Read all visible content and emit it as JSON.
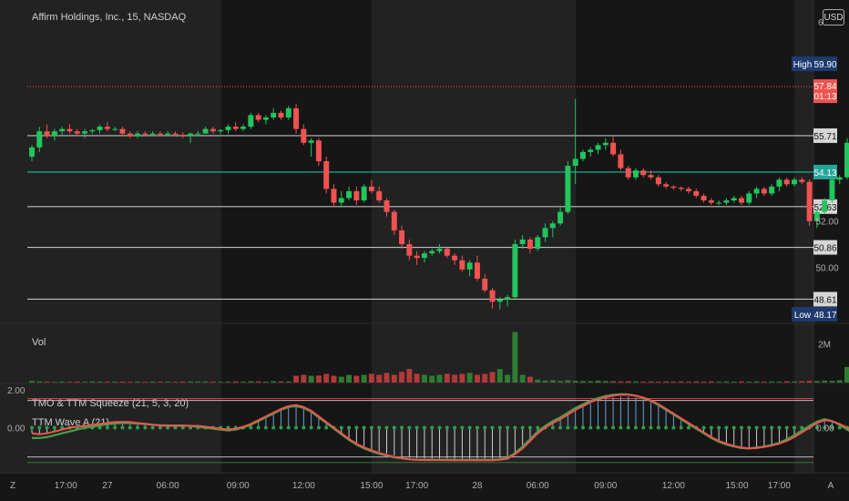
{
  "header": {
    "title": "Affirm Holdings, Inc., 15, NASDAQ",
    "cut_text": "6"
  },
  "currency_button": "USD",
  "colors": {
    "up": "#22c55e",
    "down": "#ef5350",
    "bg": "#161616",
    "shade": "#222222",
    "level": "#c0c0c0",
    "teal": "#26a69a",
    "wave_up": "#43a047",
    "wave_dn": "#ef5350"
  },
  "chart_data": [
    {
      "type": "candlestick",
      "title": "Affirm Holdings, Inc., 15, NASDAQ",
      "ylim": [
        47.6,
        61.6
      ],
      "price_ticks": [
        "52.00",
        "50.00"
      ],
      "levels": [
        {
          "value": 55.71,
          "label": "55.71",
          "color": "gray"
        },
        {
          "value": 54.13,
          "label": "54.13",
          "color": "teal"
        },
        {
          "value": 52.63,
          "label": "52.63",
          "color": "gray"
        },
        {
          "value": 50.86,
          "label": "50.86",
          "color": "gray"
        },
        {
          "value": 48.61,
          "label": "48.61",
          "color": "gray"
        }
      ],
      "high": {
        "label": "High",
        "value": "59.90"
      },
      "low": {
        "label": "Low",
        "value": "48.17"
      },
      "last_price": {
        "value": "57.84",
        "sub": "01:13"
      },
      "candles": [
        [
          54.8,
          55.3,
          54.6,
          55.2
        ],
        [
          55.2,
          56.1,
          55.0,
          55.9
        ],
        [
          55.9,
          56.2,
          55.6,
          55.7
        ],
        [
          55.7,
          56.0,
          55.5,
          55.9
        ],
        [
          55.9,
          56.1,
          55.7,
          56.0
        ],
        [
          56.0,
          56.2,
          55.8,
          55.9
        ],
        [
          55.9,
          56.0,
          55.7,
          55.8
        ],
        [
          55.8,
          56.0,
          55.6,
          55.9
        ],
        [
          55.9,
          56.0,
          55.8,
          55.95
        ],
        [
          55.95,
          56.2,
          55.8,
          56.1
        ],
        [
          56.1,
          56.3,
          55.9,
          56.0
        ],
        [
          56.0,
          56.1,
          55.9,
          56.0
        ],
        [
          56.0,
          56.1,
          55.7,
          55.8
        ],
        [
          55.8,
          55.9,
          55.6,
          55.7
        ],
        [
          55.7,
          55.9,
          55.6,
          55.8
        ],
        [
          55.8,
          55.9,
          55.7,
          55.75
        ],
        [
          55.75,
          55.9,
          55.7,
          55.8
        ],
        [
          55.8,
          55.9,
          55.7,
          55.75
        ],
        [
          55.75,
          55.9,
          55.7,
          55.8
        ],
        [
          55.8,
          55.9,
          55.7,
          55.75
        ],
        [
          55.75,
          55.85,
          55.6,
          55.7
        ],
        [
          55.7,
          55.85,
          55.4,
          55.8
        ],
        [
          55.8,
          55.9,
          55.7,
          55.8
        ],
        [
          55.8,
          56.1,
          55.8,
          56.0
        ],
        [
          56.0,
          56.1,
          55.8,
          55.9
        ],
        [
          55.9,
          56.0,
          55.8,
          55.95
        ],
        [
          55.95,
          56.2,
          55.8,
          56.1
        ],
        [
          56.1,
          56.3,
          55.9,
          56.0
        ],
        [
          56.0,
          56.2,
          55.9,
          56.1
        ],
        [
          56.1,
          56.7,
          56.0,
          56.6
        ],
        [
          56.6,
          56.7,
          56.3,
          56.4
        ],
        [
          56.4,
          56.6,
          56.2,
          56.5
        ],
        [
          56.5,
          56.9,
          56.4,
          56.7
        ],
        [
          56.7,
          56.8,
          56.4,
          56.5
        ],
        [
          56.5,
          57.0,
          56.4,
          56.9
        ],
        [
          56.9,
          57.1,
          55.8,
          56.0
        ],
        [
          56.0,
          56.2,
          55.3,
          55.4
        ],
        [
          55.4,
          55.6,
          54.8,
          55.5
        ],
        [
          55.5,
          55.6,
          54.4,
          54.6
        ],
        [
          54.6,
          54.8,
          53.2,
          53.4
        ],
        [
          53.4,
          53.6,
          52.6,
          52.8
        ],
        [
          52.8,
          53.3,
          52.6,
          53.0
        ],
        [
          53.0,
          53.5,
          52.9,
          53.3
        ],
        [
          53.3,
          53.5,
          52.7,
          52.9
        ],
        [
          52.9,
          53.6,
          52.8,
          53.5
        ],
        [
          53.5,
          53.8,
          53.2,
          53.3
        ],
        [
          53.3,
          53.5,
          52.8,
          52.9
        ],
        [
          52.9,
          53.0,
          52.2,
          52.4
        ],
        [
          52.4,
          52.5,
          51.4,
          51.6
        ],
        [
          51.6,
          51.8,
          50.8,
          51.0
        ],
        [
          51.0,
          51.2,
          50.3,
          50.5
        ],
        [
          50.5,
          50.7,
          50.1,
          50.4
        ],
        [
          50.4,
          50.7,
          50.2,
          50.6
        ],
        [
          50.6,
          50.8,
          50.5,
          50.7
        ],
        [
          50.7,
          51.0,
          50.6,
          50.8
        ],
        [
          50.8,
          50.9,
          50.4,
          50.5
        ],
        [
          50.5,
          50.6,
          50.1,
          50.3
        ],
        [
          50.3,
          50.5,
          49.8,
          49.9
        ],
        [
          49.9,
          50.3,
          49.6,
          50.2
        ],
        [
          50.2,
          50.5,
          49.4,
          49.5
        ],
        [
          49.5,
          49.7,
          48.9,
          49.0
        ],
        [
          49.0,
          49.1,
          48.2,
          48.5
        ],
        [
          48.5,
          48.7,
          48.17,
          48.6
        ],
        [
          48.6,
          48.8,
          48.3,
          48.7
        ],
        [
          48.7,
          51.2,
          48.6,
          51.0
        ],
        [
          51.0,
          51.4,
          50.8,
          51.2
        ],
        [
          51.2,
          51.3,
          50.6,
          50.8
        ],
        [
          50.8,
          51.4,
          50.7,
          51.3
        ],
        [
          51.3,
          51.9,
          51.1,
          51.7
        ],
        [
          51.7,
          52.0,
          51.3,
          51.9
        ],
        [
          51.9,
          52.6,
          51.8,
          52.4
        ],
        [
          52.4,
          54.6,
          52.3,
          54.4
        ],
        [
          54.4,
          57.3,
          53.6,
          54.7
        ],
        [
          54.7,
          55.1,
          54.6,
          55.0
        ],
        [
          55.0,
          55.2,
          54.8,
          55.1
        ],
        [
          55.1,
          55.4,
          54.9,
          55.3
        ],
        [
          55.3,
          55.6,
          55.1,
          55.4
        ],
        [
          55.4,
          55.7,
          54.8,
          54.9
        ],
        [
          54.9,
          55.1,
          54.2,
          54.3
        ],
        [
          54.3,
          54.4,
          53.8,
          53.9
        ],
        [
          53.9,
          54.3,
          53.8,
          54.2
        ],
        [
          54.2,
          54.3,
          53.9,
          54.0
        ],
        [
          54.0,
          54.2,
          53.8,
          53.9
        ],
        [
          53.9,
          54.0,
          53.5,
          53.6
        ],
        [
          53.6,
          53.7,
          53.4,
          53.5
        ],
        [
          53.5,
          53.55,
          53.35,
          53.45
        ],
        [
          53.45,
          53.5,
          53.3,
          53.4
        ],
        [
          53.4,
          53.5,
          53.2,
          53.3
        ],
        [
          53.3,
          53.4,
          53.0,
          53.1
        ],
        [
          53.1,
          53.2,
          52.8,
          52.9
        ],
        [
          52.9,
          53.0,
          52.7,
          52.8
        ],
        [
          52.8,
          52.9,
          52.7,
          52.8
        ],
        [
          52.8,
          53.0,
          52.7,
          52.9
        ],
        [
          52.9,
          53.1,
          52.8,
          53.0
        ],
        [
          53.0,
          53.1,
          52.7,
          52.8
        ],
        [
          52.8,
          53.3,
          52.7,
          53.2
        ],
        [
          53.2,
          53.5,
          53.0,
          53.4
        ],
        [
          53.4,
          53.5,
          53.1,
          53.2
        ],
        [
          53.2,
          53.6,
          53.1,
          53.5
        ],
        [
          53.5,
          53.9,
          53.3,
          53.8
        ],
        [
          53.8,
          53.9,
          53.5,
          53.6
        ],
        [
          53.6,
          53.9,
          53.5,
          53.8
        ],
        [
          53.8,
          53.9,
          53.6,
          53.7
        ],
        [
          53.7,
          53.8,
          51.8,
          52.0
        ],
        [
          52.0,
          52.5,
          51.7,
          52.4
        ],
        [
          52.4,
          53.0,
          52.3,
          52.9
        ],
        [
          52.9,
          53.9,
          52.8,
          53.8
        ],
        [
          53.8,
          54.0,
          53.6,
          53.9
        ],
        [
          53.9,
          55.6,
          53.8,
          55.4
        ],
        [
          55.4,
          56.4,
          55.3,
          56.2
        ],
        [
          56.2,
          56.5,
          56.0,
          56.4
        ],
        [
          56.4,
          59.3,
          56.3,
          58.1
        ],
        [
          58.1,
          59.9,
          57.9,
          59.0
        ],
        [
          59.0,
          59.2,
          57.6,
          57.7
        ],
        [
          57.7,
          58.7,
          57.6,
          58.6
        ],
        [
          58.6,
          58.7,
          57.7,
          57.8
        ],
        [
          57.8,
          58.4,
          57.6,
          58.2
        ],
        [
          58.2,
          58.4,
          57.7,
          57.9
        ],
        [
          57.9,
          58.3,
          57.8,
          58.1
        ],
        [
          58.1,
          58.2,
          57.8,
          57.9
        ],
        [
          57.9,
          58.0,
          55.6,
          55.8
        ],
        [
          55.8,
          56.2,
          55.6,
          56.0
        ],
        [
          56.0,
          57.2,
          55.9,
          57.0
        ],
        [
          57.0,
          57.9,
          56.8,
          57.5
        ],
        [
          57.5,
          58.0,
          57.4,
          57.84
        ]
      ]
    },
    {
      "type": "bar",
      "title": "Vol",
      "ylim": [
        0,
        3
      ],
      "y_tick": "2M",
      "values": [
        0.08,
        0.06,
        0.05,
        0.04,
        0.05,
        0.04,
        0.05,
        0.04,
        0.06,
        0.05,
        0.04,
        0.05,
        0.05,
        0.04,
        0.05,
        0.04,
        0.05,
        0.04,
        0.05,
        0.04,
        0.05,
        0.06,
        0.05,
        0.06,
        0.05,
        0.04,
        0.05,
        0.06,
        0.05,
        0.07,
        0.06,
        0.05,
        0.07,
        0.06,
        0.06,
        0.35,
        0.4,
        0.35,
        0.36,
        0.45,
        0.35,
        0.3,
        0.4,
        0.35,
        0.4,
        0.45,
        0.4,
        0.5,
        0.4,
        0.55,
        0.7,
        0.45,
        0.4,
        0.35,
        0.4,
        0.45,
        0.4,
        0.45,
        0.5,
        0.4,
        0.45,
        0.55,
        0.7,
        0.4,
        2.6,
        0.4,
        0.3,
        0.15,
        0.1,
        0.12,
        0.08,
        0.12,
        0.09,
        0.08,
        0.07,
        0.1,
        0.08,
        0.07,
        0.06,
        0.07,
        0.06,
        0.05,
        0.06,
        0.05,
        0.06,
        0.05,
        0.06,
        0.05,
        0.06,
        0.05,
        0.06,
        0.05,
        0.06,
        0.05,
        0.06,
        0.05,
        0.06,
        0.05,
        0.06,
        0.05,
        0.07,
        0.06,
        0.07,
        0.09,
        0.08,
        0.1,
        0.09,
        0.12,
        0.8,
        0.7,
        0.75,
        0.6,
        0.65,
        0.9,
        1.1,
        1.0,
        1.9,
        1.0,
        0.9,
        0.85,
        0.8,
        0.7,
        0.65,
        0.6,
        0.55
      ]
    },
    {
      "type": "line",
      "title": "TMO & TTM Squeeze (21, 5, 3, 20)",
      "subtitle": "TTM Wave A (21)",
      "y_ticks_left": [
        "2.00",
        "0.00"
      ],
      "y_tick_right": "0.00",
      "ylim": [
        -2.2,
        2.3
      ],
      "wave": [
        -0.3,
        -0.35,
        -0.3,
        -0.2,
        -0.1,
        0.0,
        0.05,
        0.1,
        0.15,
        0.2,
        0.25,
        0.3,
        0.3,
        0.3,
        0.25,
        0.2,
        0.15,
        0.12,
        0.1,
        0.1,
        0.1,
        0.1,
        0.1,
        0.05,
        0.0,
        -0.05,
        -0.1,
        -0.05,
        0.05,
        0.2,
        0.4,
        0.6,
        0.8,
        1.0,
        1.15,
        1.2,
        1.1,
        0.9,
        0.6,
        0.3,
        0.0,
        -0.3,
        -0.6,
        -0.85,
        -1.05,
        -1.2,
        -1.35,
        -1.45,
        -1.55,
        -1.62,
        -1.68,
        -1.7,
        -1.72,
        -1.72,
        -1.72,
        -1.72,
        -1.73,
        -1.73,
        -1.73,
        -1.73,
        -1.73,
        -1.73,
        -1.7,
        -1.65,
        -1.4,
        -1.1,
        -0.7,
        -0.3,
        0.0,
        0.25,
        0.45,
        0.7,
        0.95,
        1.15,
        1.35,
        1.5,
        1.62,
        1.7,
        1.75,
        1.75,
        1.7,
        1.6,
        1.45,
        1.25,
        1.0,
        0.75,
        0.5,
        0.25,
        0.0,
        -0.25,
        -0.5,
        -0.7,
        -0.85,
        -0.97,
        -1.05,
        -1.1,
        -1.08,
        -1.02,
        -0.95,
        -0.85,
        -0.7,
        -0.5,
        -0.25,
        0.0,
        0.25,
        0.4,
        0.35,
        0.2,
        0.0,
        -0.3,
        -0.5,
        -0.4,
        -0.2,
        0.1,
        0.4,
        0.7,
        1.0,
        1.2,
        1.4,
        1.5,
        1.55,
        1.55,
        1.5,
        1.45,
        1.35,
        1.25,
        1.1,
        0.9,
        0.7,
        0.55,
        0.5,
        0.5
      ],
      "wave_up": [
        -0.55,
        -0.55,
        -0.5,
        -0.4,
        -0.3,
        -0.2,
        -0.1,
        0.0,
        0.05,
        0.12,
        0.18,
        0.22,
        0.25,
        0.25,
        0.22,
        0.2,
        0.16,
        0.13,
        0.12,
        0.12,
        0.12,
        0.1,
        0.05,
        0.0,
        -0.05,
        -0.1,
        -0.15,
        -0.1,
        0.0,
        0.15,
        0.35,
        0.55,
        0.75,
        0.95,
        1.1,
        1.15,
        1.05,
        0.85,
        0.55,
        0.25,
        -0.05,
        -0.35,
        -0.65,
        -0.9,
        -1.1,
        -1.25,
        -1.38,
        -1.48,
        -1.57,
        -1.63,
        -1.68,
        -1.7,
        -1.7,
        -1.7,
        -1.7,
        -1.7,
        -1.71,
        -1.71,
        -1.71,
        -1.71,
        -1.71,
        -1.7,
        -1.68,
        -1.6,
        -1.35,
        -1.0,
        -0.6,
        -0.2,
        0.1,
        0.35,
        0.55,
        0.8,
        1.05,
        1.25,
        1.42,
        1.57,
        1.68,
        1.75,
        1.78,
        1.77,
        1.7,
        1.58,
        1.42,
        1.2,
        0.95,
        0.7,
        0.45,
        0.2,
        -0.05,
        -0.3,
        -0.55,
        -0.75,
        -0.9,
        -1.0,
        -1.08,
        -1.1,
        -1.06,
        -1.0,
        -0.92,
        -0.8,
        -0.62,
        -0.4,
        -0.15,
        0.1,
        0.32,
        0.45,
        0.35,
        0.15,
        -0.1,
        -0.35,
        -0.45,
        -0.3,
        -0.05,
        0.25,
        0.55,
        0.85,
        1.1,
        1.3,
        1.47,
        1.57,
        1.6,
        1.58,
        1.52,
        1.45,
        1.36,
        1.25,
        1.1,
        0.92,
        0.72,
        0.58,
        0.52,
        0.52
      ],
      "upper_band": 1.55,
      "lower_band": -1.55,
      "top_line": 1.45,
      "bottom_line": -1.85
    }
  ],
  "time_axis": {
    "labels": [
      {
        "text": "17:00",
        "bar": 4.5
      },
      {
        "text": "27",
        "bar": 10
      },
      {
        "text": "06:00",
        "bar": 18
      },
      {
        "text": "09:00",
        "bar": 27.3
      },
      {
        "text": "12:00",
        "bar": 36
      },
      {
        "text": "15:00",
        "bar": 45
      },
      {
        "text": "17:00",
        "bar": 51
      },
      {
        "text": "28",
        "bar": 59
      },
      {
        "text": "06:00",
        "bar": 67
      },
      {
        "text": "09:00",
        "bar": 76
      },
      {
        "text": "12:00",
        "bar": 85
      },
      {
        "text": "15:00",
        "bar": 93.4
      },
      {
        "text": "17:00",
        "bar": 99
      }
    ],
    "left_icon": "Z",
    "right_icon": "A"
  }
}
